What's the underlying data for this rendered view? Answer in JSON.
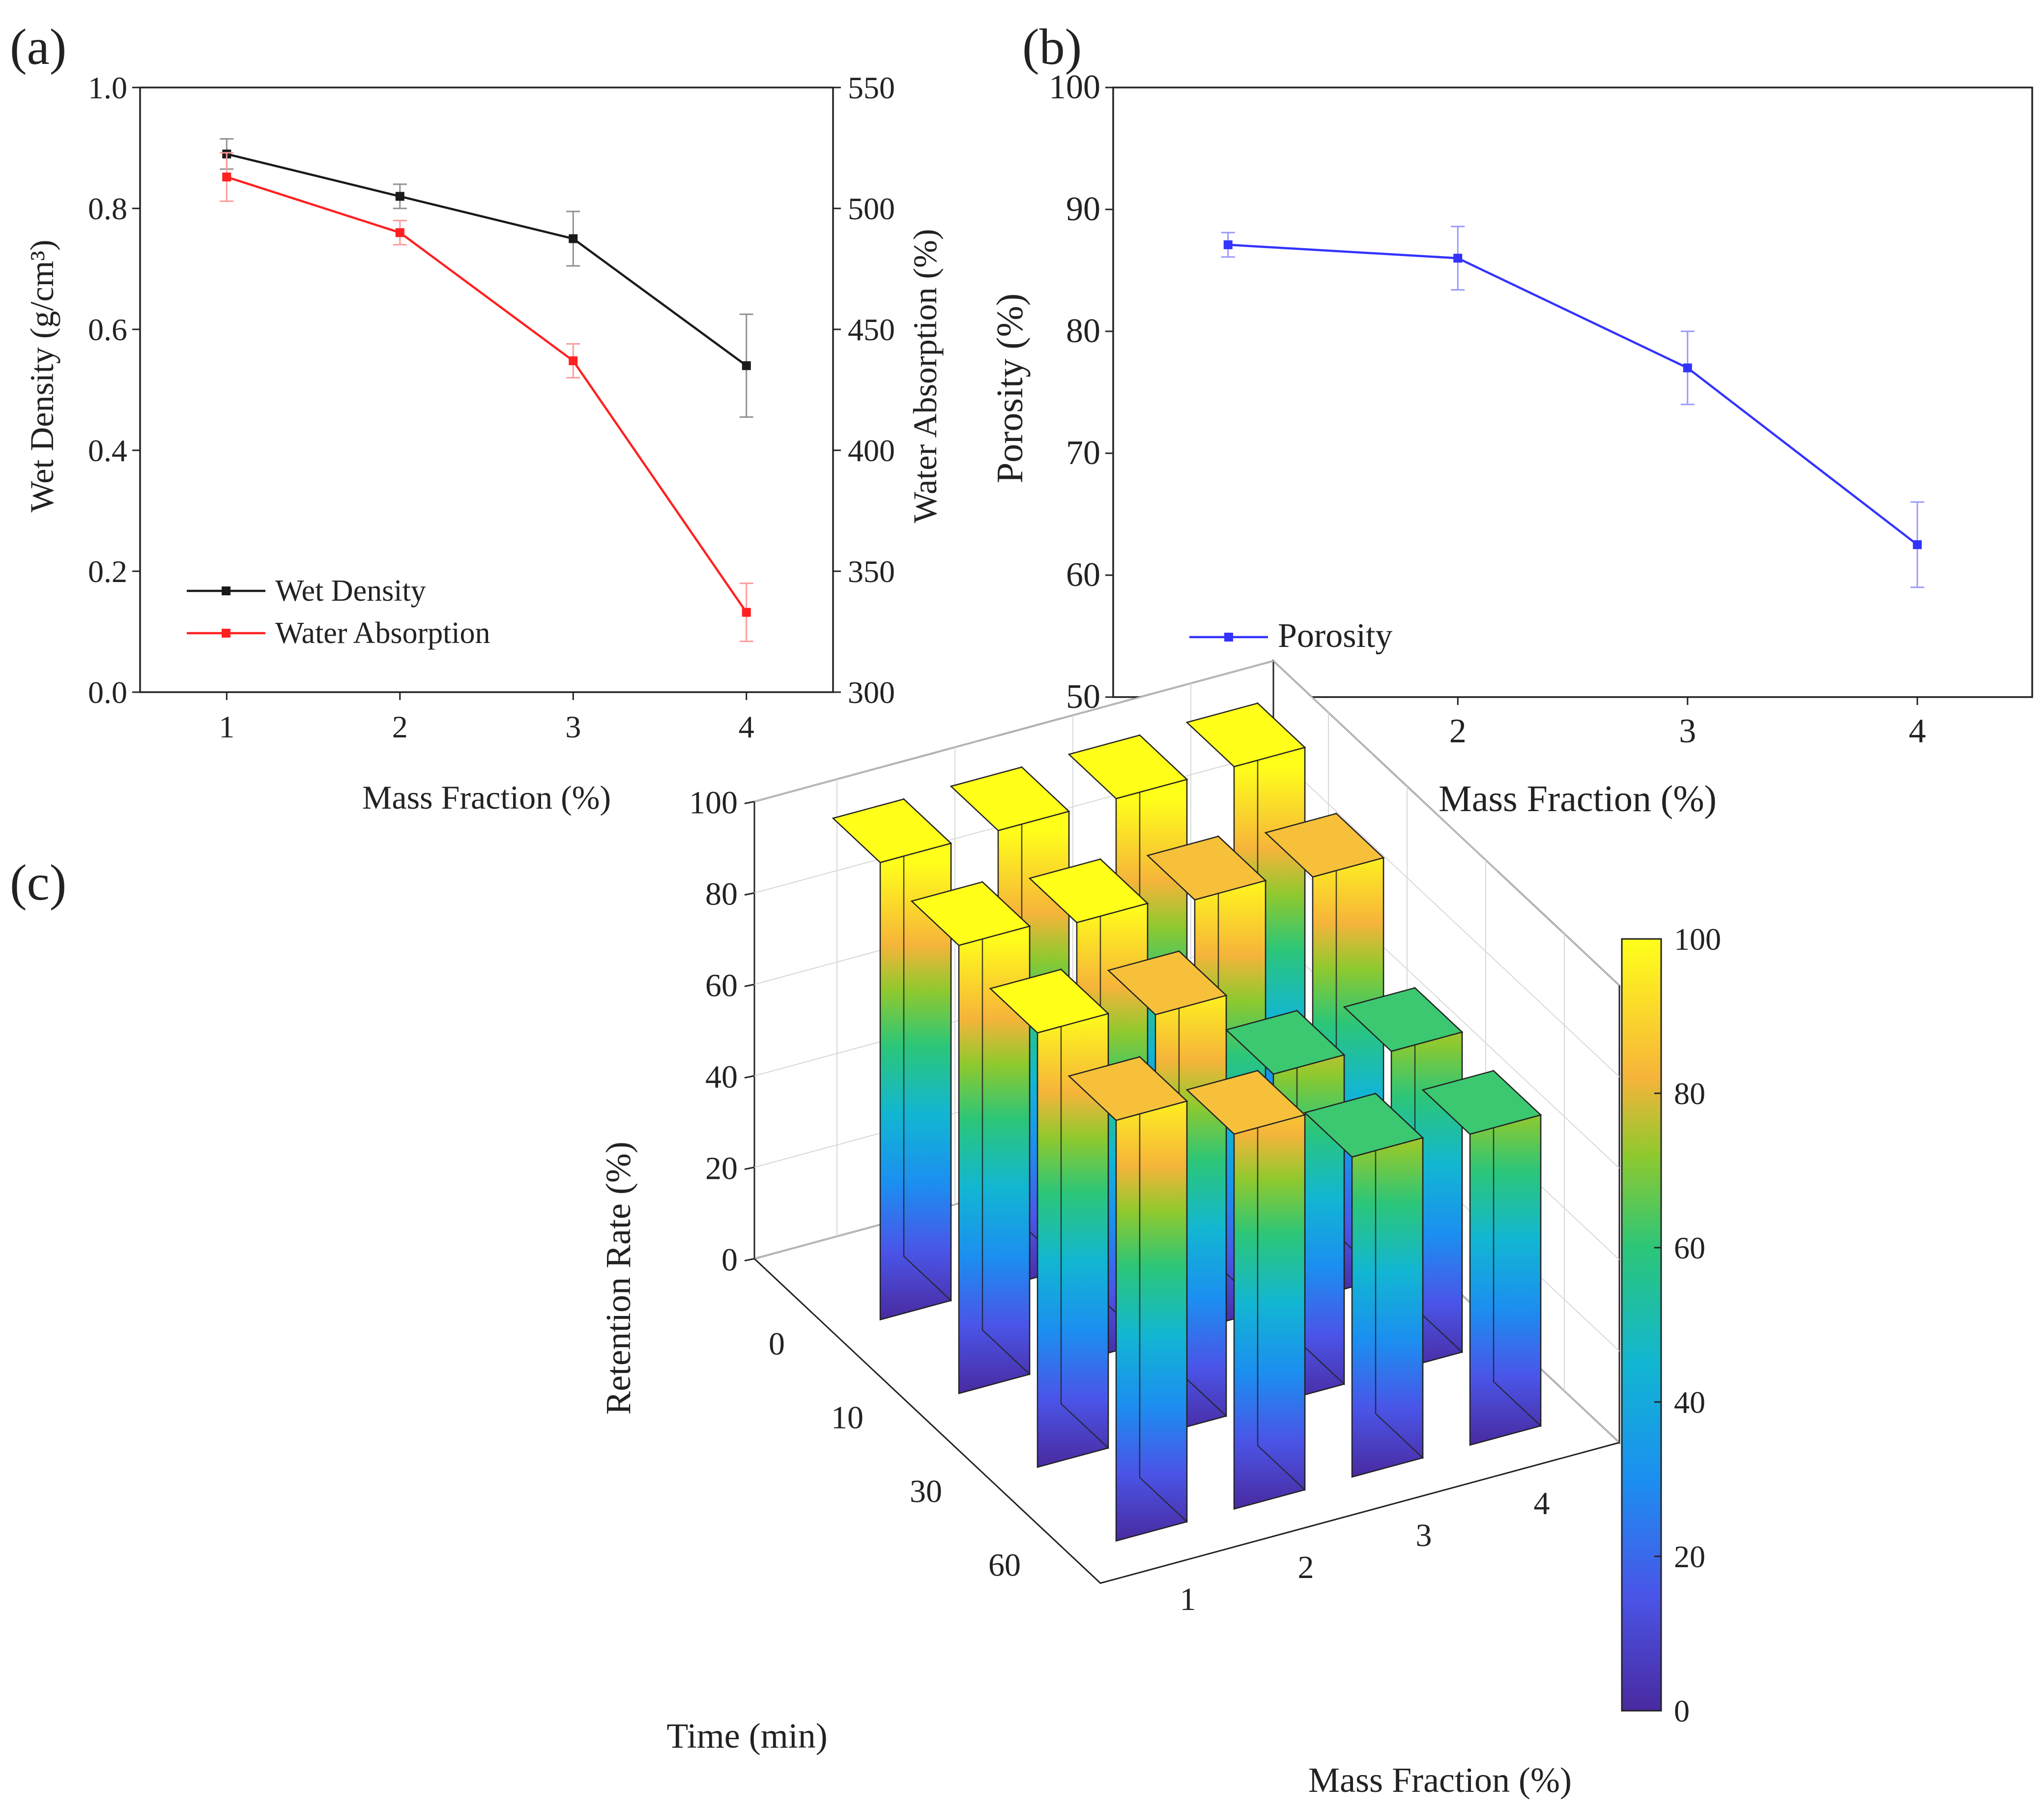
{
  "chart_data": [
    {
      "panel": "(a)",
      "type": "line",
      "xlabel": "Mass Fraction (%)",
      "ylabel": "Wet Density (g/cm³)",
      "ylabel_right": "Water Absorption (%)",
      "x": [
        1,
        2,
        3,
        4
      ],
      "xlim": [
        0.5,
        4.5
      ],
      "ylim": [
        0.0,
        1.0
      ],
      "ylim_right": [
        300,
        550
      ],
      "yticks": [
        0.0,
        0.2,
        0.4,
        0.6,
        0.8,
        1.0
      ],
      "yticks_right": [
        300,
        350,
        400,
        450,
        500,
        550
      ],
      "legend_position": "bottom-left",
      "series": [
        {
          "name": "Wet Density",
          "axis": "left",
          "color": "#1a1a1a",
          "values": [
            0.89,
            0.82,
            0.75,
            0.54
          ],
          "error": [
            0.025,
            0.02,
            0.045,
            0.085
          ]
        },
        {
          "name": "Water Absorption",
          "axis": "right",
          "color": "#ff2020",
          "values": [
            513,
            490,
            437,
            333
          ],
          "error": [
            10,
            5,
            7,
            12
          ]
        }
      ]
    },
    {
      "panel": "(b)",
      "type": "line",
      "xlabel": "Mass Fraction (%)",
      "ylabel": "Porosity (%)",
      "x": [
        1,
        2,
        3,
        4
      ],
      "xlim": [
        0.5,
        4.5
      ],
      "ylim": [
        50,
        100
      ],
      "yticks": [
        50,
        60,
        70,
        80,
        90,
        100
      ],
      "legend_position": "bottom-left",
      "series": [
        {
          "name": "Porosity",
          "color": "#3333ff",
          "values": [
            87.1,
            86.0,
            77.0,
            62.5
          ],
          "error": [
            1.0,
            2.6,
            3.0,
            3.5
          ]
        }
      ]
    },
    {
      "panel": "(c)",
      "type": "bar3d",
      "zlabel": "Retention Rate (%)",
      "ylabel": "Time (min)",
      "xlabel": "Mass Fraction (%)",
      "mass_fraction": [
        1,
        2,
        3,
        4
      ],
      "time": [
        0,
        10,
        30,
        60
      ],
      "zlim": [
        0,
        100
      ],
      "zticks": [
        0,
        20,
        40,
        60,
        80,
        100
      ],
      "colorbar_ticks": [
        0,
        20,
        40,
        60,
        80,
        100
      ],
      "values_by_time": [
        [
          100,
          100,
          100,
          100
        ],
        [
          98,
          96,
          94,
          92
        ],
        [
          95,
          92,
          72,
          70
        ],
        [
          92,
          82,
          70,
          68
        ]
      ]
    }
  ]
}
